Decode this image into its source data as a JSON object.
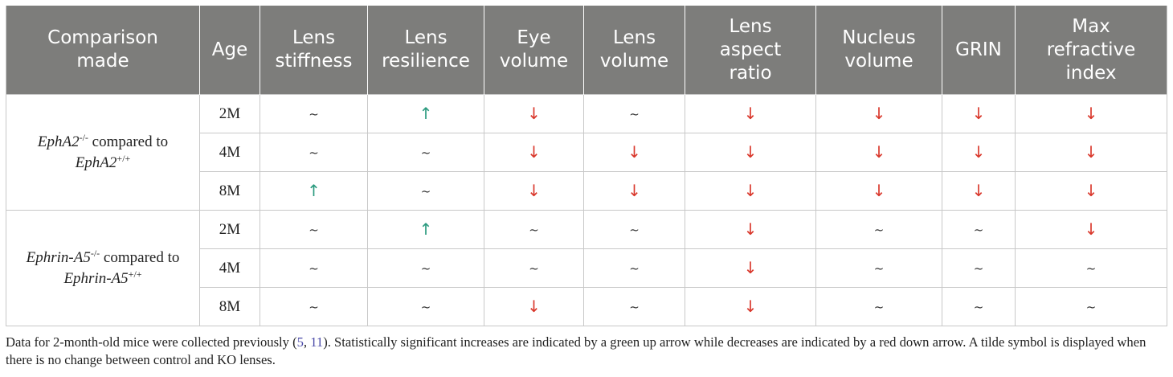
{
  "table": {
    "headers": [
      [
        "Comparison",
        "made"
      ],
      [
        "Age"
      ],
      [
        "Lens",
        "stiffness"
      ],
      [
        "Lens",
        "resilience"
      ],
      [
        "Eye",
        "volume"
      ],
      [
        "Lens",
        "volume"
      ],
      [
        "Lens",
        "aspect",
        "ratio"
      ],
      [
        "Nucleus",
        "volume"
      ],
      [
        "GRIN"
      ],
      [
        "Max",
        "refractive",
        "index"
      ]
    ],
    "groups": [
      {
        "gene": "EphA2",
        "ko_sup": "-/-",
        "middle": " compared to",
        "wt_sup": "+/+",
        "rows": [
          {
            "age": "2M",
            "cells": [
              {
                "sym": "~",
                "kind": "none"
              },
              {
                "sym": "↑",
                "kind": "up"
              },
              {
                "sym": "↓",
                "kind": "down"
              },
              {
                "sym": "~",
                "kind": "none"
              },
              {
                "sym": "↓",
                "kind": "down"
              },
              {
                "sym": "↓",
                "kind": "down"
              },
              {
                "sym": "↓",
                "kind": "down"
              },
              {
                "sym": "↓",
                "kind": "down"
              }
            ]
          },
          {
            "age": "4M",
            "cells": [
              {
                "sym": "~",
                "kind": "none"
              },
              {
                "sym": "~",
                "kind": "none"
              },
              {
                "sym": "↓",
                "kind": "down"
              },
              {
                "sym": "↓",
                "kind": "down"
              },
              {
                "sym": "↓",
                "kind": "down"
              },
              {
                "sym": "↓",
                "kind": "down"
              },
              {
                "sym": "↓",
                "kind": "down"
              },
              {
                "sym": "↓",
                "kind": "down"
              }
            ]
          },
          {
            "age": "8M",
            "cells": [
              {
                "sym": "↑",
                "kind": "up"
              },
              {
                "sym": "~",
                "kind": "none"
              },
              {
                "sym": "↓",
                "kind": "down"
              },
              {
                "sym": "↓",
                "kind": "down"
              },
              {
                "sym": "↓",
                "kind": "down"
              },
              {
                "sym": "↓",
                "kind": "down"
              },
              {
                "sym": "↓",
                "kind": "down"
              },
              {
                "sym": "↓",
                "kind": "down"
              }
            ]
          }
        ]
      },
      {
        "gene": "Ephrin-A5",
        "ko_sup": "-/-",
        "middle": " compared to",
        "wt_sup": "+/+",
        "rows": [
          {
            "age": "2M",
            "cells": [
              {
                "sym": "~",
                "kind": "none"
              },
              {
                "sym": "↑",
                "kind": "up"
              },
              {
                "sym": "~",
                "kind": "none"
              },
              {
                "sym": "~",
                "kind": "none"
              },
              {
                "sym": "↓",
                "kind": "down"
              },
              {
                "sym": "~",
                "kind": "none"
              },
              {
                "sym": "~",
                "kind": "none"
              },
              {
                "sym": "↓",
                "kind": "down"
              }
            ]
          },
          {
            "age": "4M",
            "cells": [
              {
                "sym": "~",
                "kind": "none"
              },
              {
                "sym": "~",
                "kind": "none"
              },
              {
                "sym": "~",
                "kind": "none"
              },
              {
                "sym": "~",
                "kind": "none"
              },
              {
                "sym": "↓",
                "kind": "down"
              },
              {
                "sym": "~",
                "kind": "none"
              },
              {
                "sym": "~",
                "kind": "none"
              },
              {
                "sym": "~",
                "kind": "none"
              }
            ]
          },
          {
            "age": "8M",
            "cells": [
              {
                "sym": "~",
                "kind": "none"
              },
              {
                "sym": "~",
                "kind": "none"
              },
              {
                "sym": "↓",
                "kind": "down"
              },
              {
                "sym": "~",
                "kind": "none"
              },
              {
                "sym": "↓",
                "kind": "down"
              },
              {
                "sym": "~",
                "kind": "none"
              },
              {
                "sym": "~",
                "kind": "none"
              },
              {
                "sym": "~",
                "kind": "none"
              }
            ]
          }
        ]
      }
    ]
  },
  "footnote": {
    "lead": "Data for 2-month-old mice were collected previously (",
    "ref1": "5",
    "sep": ", ",
    "ref2": "11",
    "rest": "). Statistically significant increases are indicated by a green up arrow while decreases are indicated by a red down arrow. A tilde symbol is displayed when there is no change between control and KO lenses."
  },
  "colors": {
    "header_bg": "#7d7d7b",
    "up_arrow": "#2a9a7e",
    "down_arrow": "#d9372b",
    "border": "#c8c8c8",
    "reference_link": "#4a4aa8"
  }
}
